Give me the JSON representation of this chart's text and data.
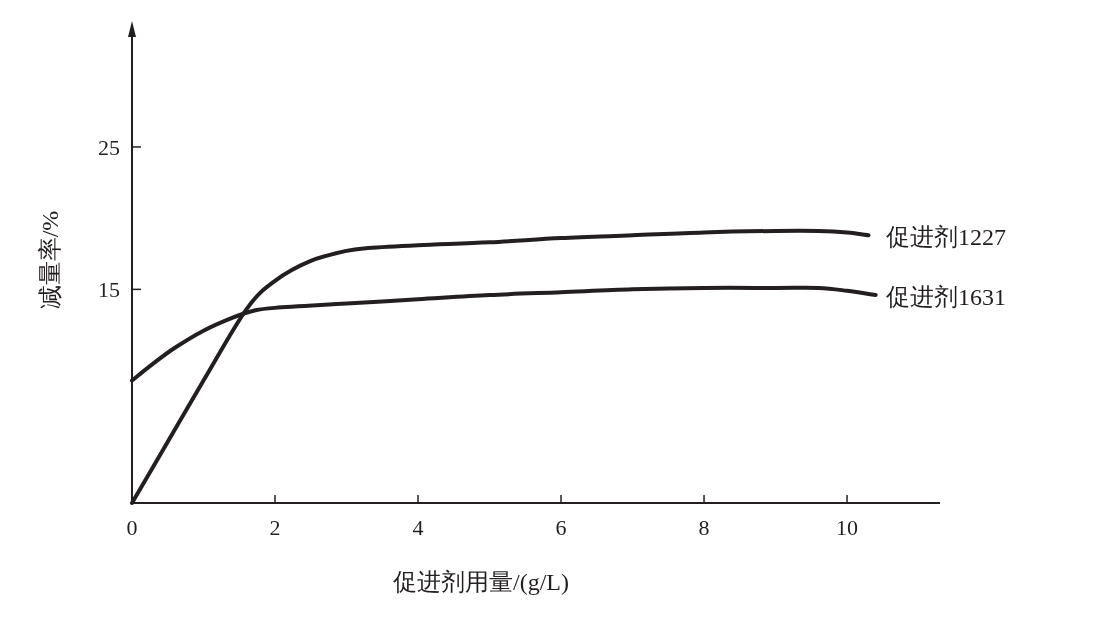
{
  "chart_data": {
    "type": "line",
    "xlabel": "促进剂用量/(g/L)",
    "ylabel": "减量率/%",
    "xlim": [
      0,
      11.3
    ],
    "ylim": [
      0,
      33
    ],
    "xticks": [
      0,
      2,
      4,
      6,
      8,
      10
    ],
    "yticks": [
      15,
      25
    ],
    "grid": false,
    "marker": "none",
    "line_style": "solid",
    "series": [
      {
        "name": "促进剂1227",
        "color": "#231f20",
        "x": [
          0,
          0.5,
          1,
          1.6,
          2,
          2.5,
          3,
          3.3,
          4,
          5,
          6,
          7,
          8,
          9,
          9.6,
          10,
          10.3
        ],
        "values": [
          0,
          4.3,
          8.6,
          13.6,
          15.6,
          17.0,
          17.7,
          17.9,
          18.1,
          18.3,
          18.6,
          18.8,
          19.0,
          19.1,
          19.1,
          19.0,
          18.8
        ]
      },
      {
        "name": "促进剂1631",
        "color": "#231f20",
        "x": [
          0,
          0.3,
          0.6,
          1,
          1.4,
          1.7,
          2,
          3,
          4,
          5,
          6,
          7,
          8,
          9,
          9.6,
          10,
          10.4
        ],
        "values": [
          8.6,
          9.8,
          10.9,
          12.1,
          13.0,
          13.5,
          13.7,
          14.0,
          14.3,
          14.6,
          14.8,
          15.0,
          15.1,
          15.1,
          15.1,
          14.9,
          14.6
        ]
      }
    ]
  }
}
